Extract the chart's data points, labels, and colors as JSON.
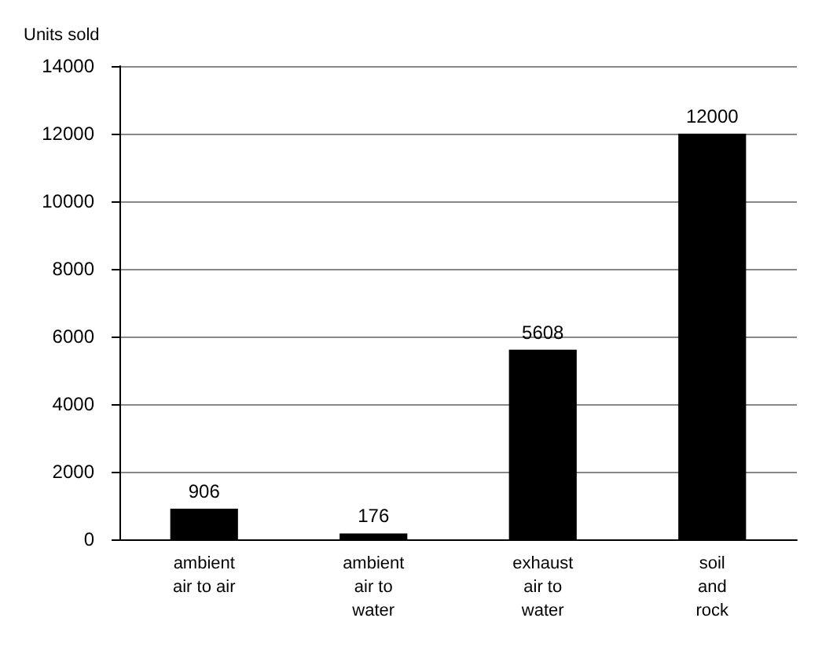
{
  "chart_data": {
    "type": "bar",
    "ylabel": "Units sold",
    "categories": [
      "ambient\nair to air",
      "ambient\nair to\nwater",
      "exhaust\nair to\nwater",
      "soil\nand\nrock"
    ],
    "values": [
      906,
      176,
      5608,
      12000
    ],
    "color": "#000000",
    "ylim": [
      0,
      14000
    ],
    "yticks": [
      0,
      2000,
      4000,
      6000,
      8000,
      10000,
      12000,
      14000
    ],
    "grid": "y",
    "data_labels": true
  }
}
